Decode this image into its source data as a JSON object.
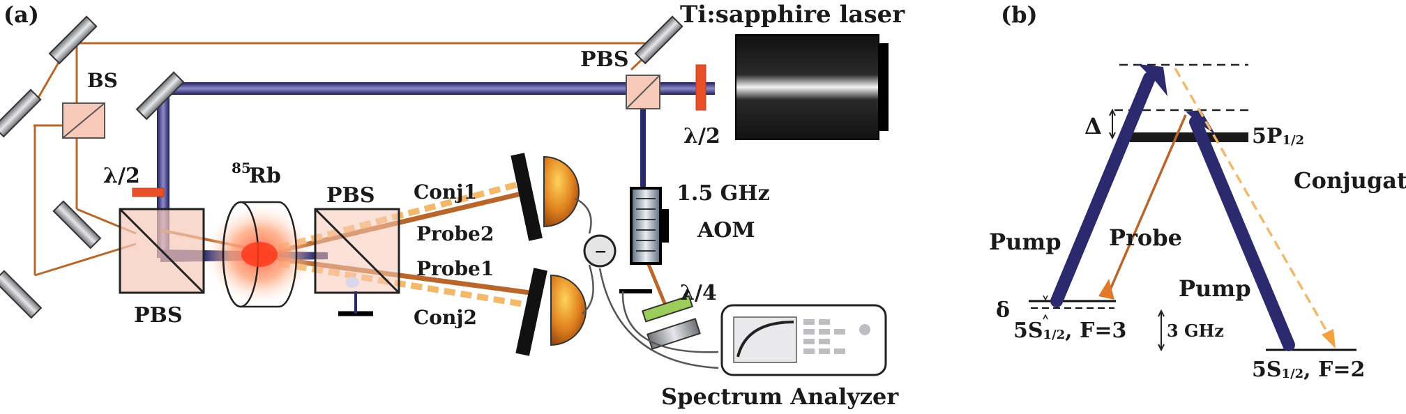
{
  "panel_a": {
    "tag": "(a)",
    "laser": "Ti:sapphire laser",
    "bs": "BS",
    "pbs_top": "PBS",
    "half_wave_top": "λ/2",
    "half_wave_left": "λ/2",
    "rb_sup": "85",
    "rb": "Rb",
    "pbs_mid": "PBS",
    "pbs_left": "PBS",
    "conj1": "Conj1",
    "probe2": "Probe2",
    "probe1": "Probe1",
    "conj2": "Conj2",
    "aom_freq": "1.5 GHz",
    "aom": "AOM",
    "quarter_wave": "λ/4",
    "minus": "−",
    "analyzer": "Spectrum Analyzer"
  },
  "panel_b": {
    "tag": "(b)",
    "delta_cap": "Δ",
    "level_5p": "5P",
    "level_5p_sub": "1/2",
    "conjugate": "Conjugate",
    "pump_left": "Pump",
    "probe": "Probe",
    "pump_right": "Pump",
    "delta_small": "δ",
    "ground3_a": "5S",
    "ground3_sub": "1/2",
    "ground3_b": ", F=3",
    "split": "3 GHz",
    "ground2_a": "5S",
    "ground2_sub": "1/2",
    "ground2_b": ", F=2"
  },
  "colors": {
    "pump_beam": "#2c2a6e",
    "probe_beam": "#b8662a",
    "conj_beam": "#f3b96a",
    "detector": "#e0821f",
    "filter_red": "#e8502a",
    "plate_green": "#9ccc5a"
  }
}
